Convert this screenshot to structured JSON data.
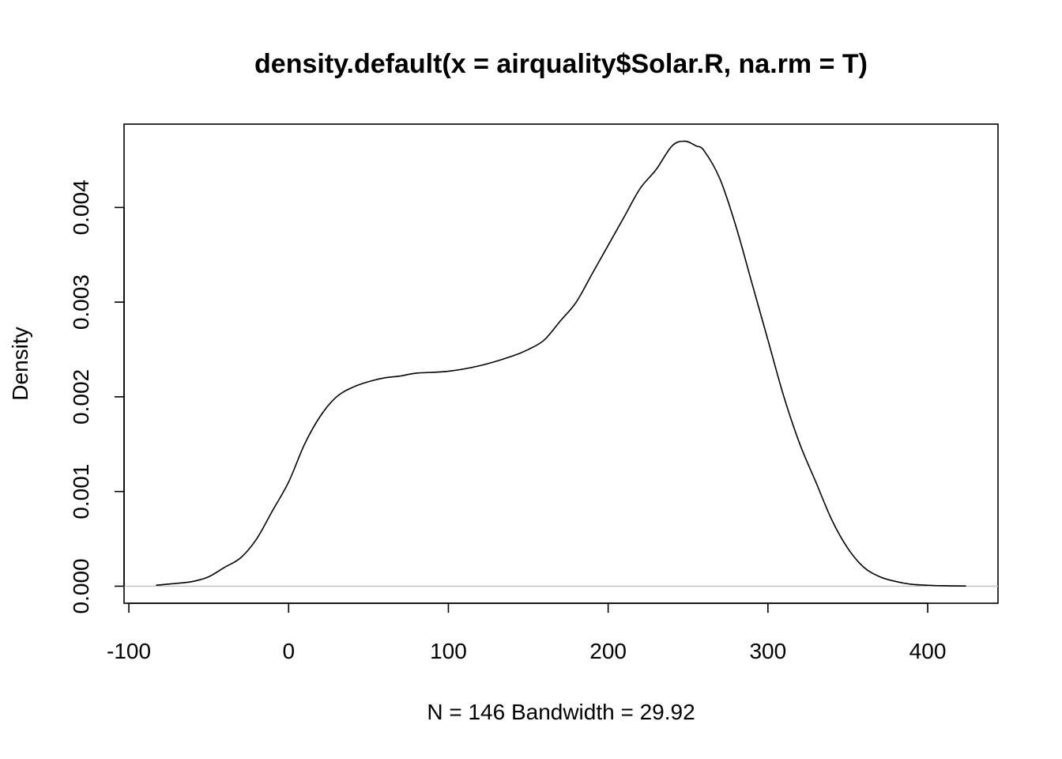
{
  "chart_data": {
    "type": "line",
    "title": "density.default(x = airquality$Solar.R, na.rm = T)",
    "xlabel": "N = 146   Bandwidth = 29.92",
    "ylabel": "Density",
    "xlim": [
      -103,
      444
    ],
    "ylim": [
      -0.00018,
      0.00488
    ],
    "x_ticks": [
      -100,
      0,
      100,
      200,
      300,
      400
    ],
    "x_tick_labels": [
      "-100",
      "0",
      "100",
      "200",
      "300",
      "400"
    ],
    "y_ticks": [
      0,
      0.001,
      0.002,
      0.003,
      0.004
    ],
    "y_tick_labels": [
      "0.000",
      "0.001",
      "0.002",
      "0.003",
      "0.004"
    ],
    "zero_line": true,
    "zero_line_color": "#c0c0c0",
    "line_color": "#000000",
    "series": [
      {
        "x": [
          -83,
          -70,
          -60,
          -50,
          -40,
          -30,
          -20,
          -10,
          0,
          10,
          20,
          30,
          40,
          50,
          60,
          70,
          80,
          100,
          120,
          140,
          150,
          160,
          170,
          180,
          190,
          200,
          210,
          220,
          230,
          240,
          248,
          255,
          260,
          270,
          280,
          290,
          300,
          310,
          320,
          330,
          340,
          350,
          360,
          370,
          380,
          390,
          400,
          410,
          424
        ],
        "y": [
          1e-05,
          3e-05,
          5e-05,
          0.0001,
          0.0002,
          0.0003,
          0.0005,
          0.0008,
          0.0011,
          0.0015,
          0.0018,
          0.002,
          0.0021,
          0.00216,
          0.0022,
          0.00222,
          0.00225,
          0.00227,
          0.00233,
          0.00243,
          0.0025,
          0.0026,
          0.0028,
          0.003,
          0.0033,
          0.0036,
          0.0039,
          0.0042,
          0.0044,
          0.00465,
          0.0047,
          0.00465,
          0.0046,
          0.0043,
          0.0038,
          0.0032,
          0.0026,
          0.002,
          0.0015,
          0.0011,
          0.0007,
          0.0004,
          0.0002,
          0.0001,
          5e-05,
          2e-05,
          1e-05,
          5e-06,
          2e-06
        ]
      }
    ]
  }
}
